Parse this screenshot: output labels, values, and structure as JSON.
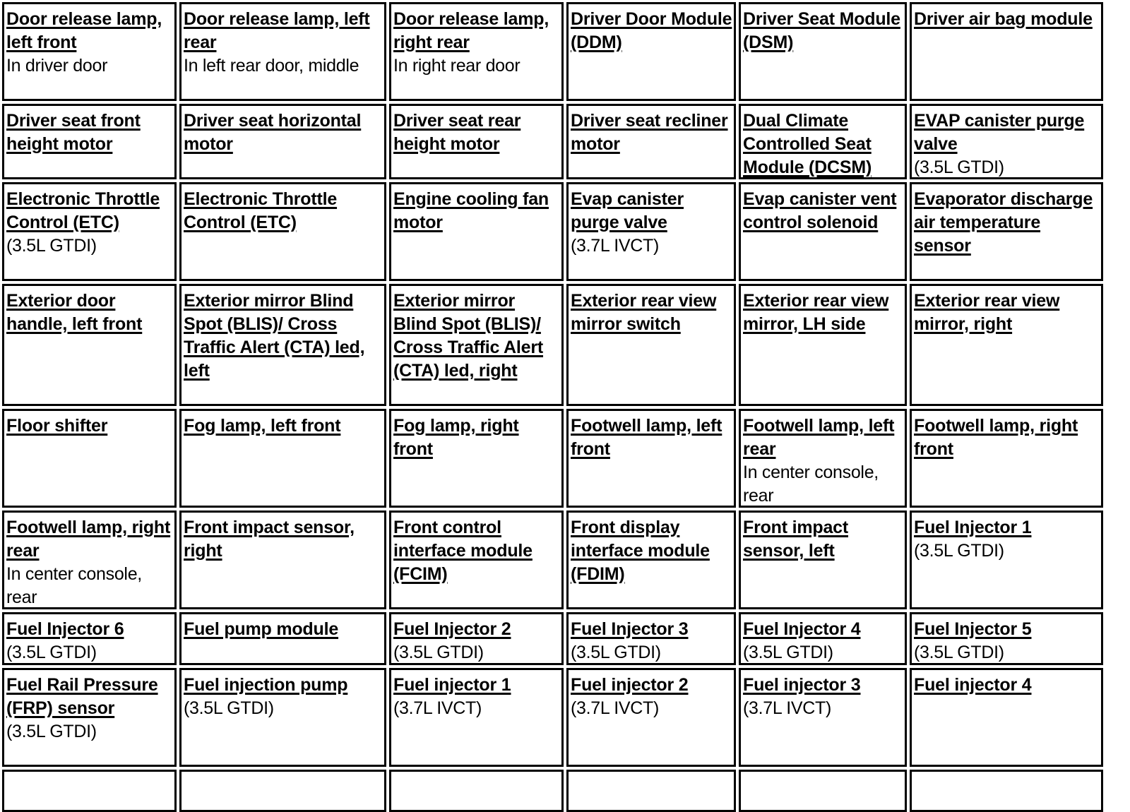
{
  "rows": [
    [
      {
        "title": "Door release lamp, left front",
        "note": "In driver door"
      },
      {
        "title": "Door release lamp, left rear",
        "note": "In left rear door, middle"
      },
      {
        "title": "Door release lamp, right rear",
        "note": "In right rear door"
      },
      {
        "title": "Driver Door Module (DDM)",
        "note": ""
      },
      {
        "title": "Driver Seat Module (DSM)",
        "note": ""
      },
      {
        "title": "Driver air bag module",
        "note": ""
      }
    ],
    [
      {
        "title": "Driver seat front height motor",
        "note": ""
      },
      {
        "title": "Driver seat horizontal motor",
        "note": ""
      },
      {
        "title": "Driver seat rear height motor",
        "note": ""
      },
      {
        "title": "Driver seat recliner motor",
        "note": ""
      },
      {
        "title": "Dual Climate Controlled Seat Module (DCSM)",
        "note": ""
      },
      {
        "title": "EVAP canister purge valve",
        "note": "(3.5L GTDI)"
      }
    ],
    [
      {
        "title": "Electronic Throttle Control (ETC)",
        "note": "(3.5L GTDI)"
      },
      {
        "title": "Electronic Throttle Control (ETC)",
        "note": ""
      },
      {
        "title": "Engine cooling fan motor",
        "note": ""
      },
      {
        "title": "Evap canister purge valve",
        "note": "(3.7L IVCT)"
      },
      {
        "title": "Evap canister vent control solenoid",
        "note": ""
      },
      {
        "title": "Evaporator discharge air temperature sensor",
        "note": ""
      }
    ],
    [
      {
        "title": "Exterior door handle, left front",
        "note": ""
      },
      {
        "title": "Exterior mirror Blind Spot (BLIS)/ Cross Traffic Alert (CTA) led, left",
        "note": ""
      },
      {
        "title": "Exterior mirror Blind Spot (BLIS)/ Cross Traffic Alert (CTA) led, right",
        "note": ""
      },
      {
        "title": "Exterior rear view mirror switch",
        "note": ""
      },
      {
        "title": "Exterior rear view mirror, LH side",
        "note": ""
      },
      {
        "title": "Exterior rear view mirror, right",
        "note": ""
      }
    ],
    [
      {
        "title": "Floor shifter",
        "note": ""
      },
      {
        "title": "Fog lamp, left front",
        "note": ""
      },
      {
        "title": "Fog lamp, right front",
        "note": ""
      },
      {
        "title": "Footwell lamp, left front",
        "note": ""
      },
      {
        "title": "Footwell lamp, left rear",
        "note": "In center console, rear"
      },
      {
        "title": "Footwell lamp, right front",
        "note": ""
      }
    ],
    [
      {
        "title": "Footwell lamp, right rear",
        "note": "In center console, rear"
      },
      {
        "title": "Front impact sensor, right",
        "note": ""
      },
      {
        "title": "Front control interface module (FCIM)",
        "note": ""
      },
      {
        "title": "Front display interface module (FDIM)",
        "note": ""
      },
      {
        "title": "Front impact sensor, left",
        "note": ""
      },
      {
        "title": "Fuel Injector 1",
        "note": "(3.5L GTDI)"
      }
    ],
    [
      {
        "title": "Fuel Injector 6",
        "note": "(3.5L GTDI)"
      },
      {
        "title": "Fuel pump module",
        "note": ""
      },
      {
        "title": "Fuel Injector 2",
        "note": "(3.5L GTDI)"
      },
      {
        "title": "Fuel Injector 3",
        "note": "(3.5L GTDI)"
      },
      {
        "title": "Fuel Injector 4",
        "note": "(3.5L GTDI)"
      },
      {
        "title": "Fuel Injector 5",
        "note": "(3.5L GTDI)"
      }
    ],
    [
      {
        "title": "Fuel Rail Pressure (FRP) sensor",
        "note": "(3.5L GTDI)"
      },
      {
        "title": "Fuel injection pump",
        "note": "(3.5L GTDI)"
      },
      {
        "title": "Fuel injector 1",
        "note": "(3.7L IVCT)"
      },
      {
        "title": "Fuel injector 2",
        "note": "(3.7L IVCT)"
      },
      {
        "title": "Fuel injector 3",
        "note": "(3.7L IVCT)"
      },
      {
        "title": "Fuel injector 4",
        "note": ""
      }
    ],
    [
      {
        "title": "",
        "note": ""
      },
      {
        "title": "",
        "note": ""
      },
      {
        "title": "",
        "note": ""
      },
      {
        "title": "",
        "note": ""
      },
      {
        "title": "",
        "note": ""
      },
      {
        "title": "",
        "note": ""
      }
    ]
  ]
}
